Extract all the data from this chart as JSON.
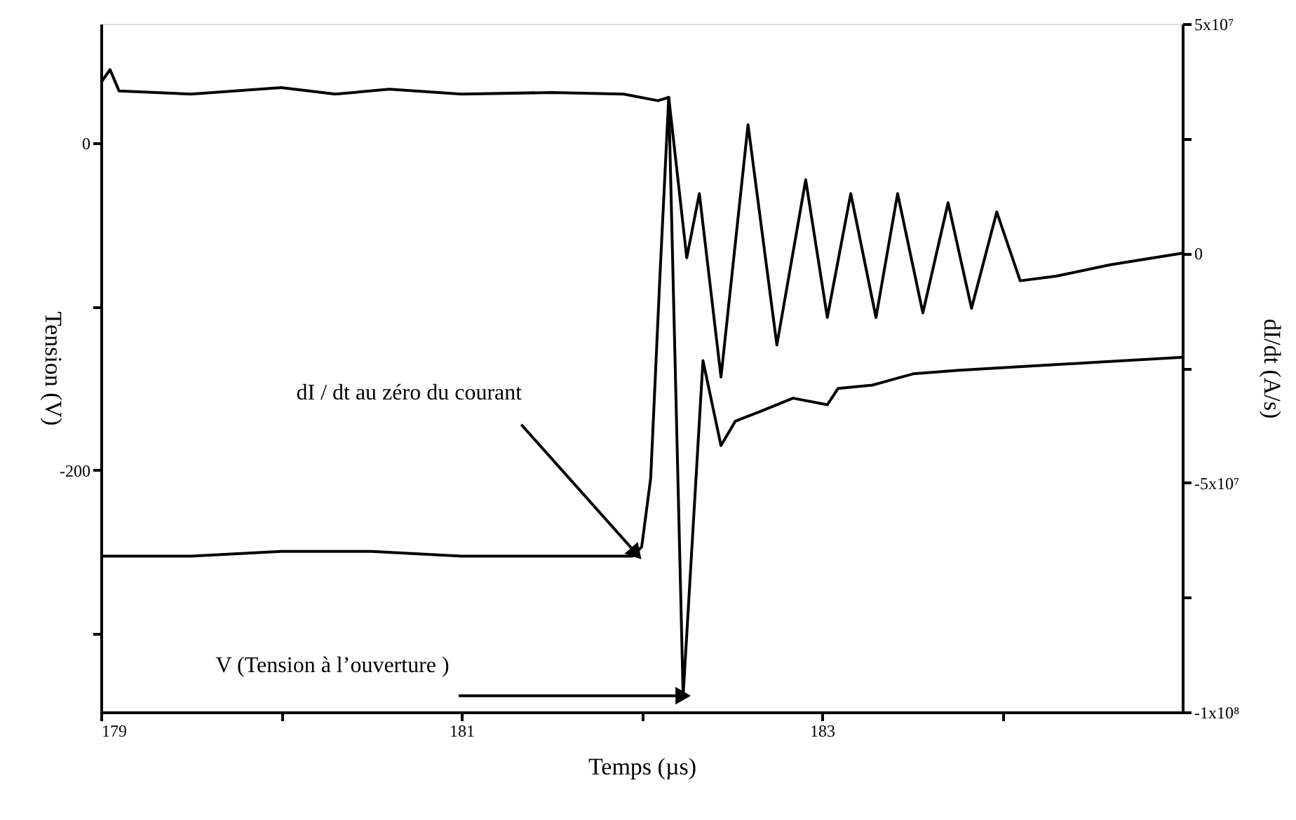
{
  "chart_data": {
    "type": "line",
    "xlabel": "Temps (µs)",
    "ylabel": "Tension (V)",
    "y2label": "dI/dt (A/s)",
    "xlim": [
      179,
      185
    ],
    "xticks": [
      179,
      {
        "value": 180,
        "label": null
      },
      181,
      {
        "value": 182,
        "label": null
      },
      183,
      {
        "value": 184,
        "label": null
      }
    ],
    "ylim": [
      -348,
      73
    ],
    "yticks": [
      {
        "value": -300,
        "label": null
      },
      -200,
      {
        "value": -100,
        "label": null
      },
      0
    ],
    "y2lim": [
      -100000000,
      50000000
    ],
    "y2ticks": [
      {
        "value": -100000000,
        "label": "-1x10⁸"
      },
      {
        "value": -75000000,
        "label": null
      },
      {
        "value": -50000000,
        "label": "-5x10⁷"
      },
      {
        "value": -25000000,
        "label": null
      },
      0,
      {
        "value": 25000000,
        "label": null
      },
      {
        "value": 50000000,
        "label": "5x10⁷"
      }
    ],
    "grid": false,
    "marker": "none",
    "line_style": "solid",
    "series": [
      {
        "color": "#000000",
        "x": [
          179.0,
          179.05,
          179.1,
          179.5,
          180.0,
          180.3,
          180.6,
          181.0,
          181.5,
          181.9,
          182.09,
          182.15,
          182.23,
          182.34,
          182.44,
          182.52,
          182.66,
          182.84,
          183.03,
          183.09,
          183.28,
          183.51,
          183.75,
          184.06,
          184.53,
          185.0
        ],
        "values": [
          37,
          45,
          32,
          30,
          34,
          30,
          33,
          30,
          31,
          30,
          26,
          28,
          -338,
          -133,
          -185,
          -170,
          -164,
          -156,
          -160,
          -150,
          -148,
          -141,
          -139,
          -137,
          -134,
          -131
        ]
      },
      {
        "color": "#000000",
        "axis": "y2",
        "x": [
          179.0,
          179.5,
          180.0,
          180.5,
          181.0,
          181.5,
          181.95,
          182.0,
          182.05,
          182.1,
          182.15,
          182.25,
          182.32,
          182.44,
          182.59,
          182.75,
          182.91,
          183.03,
          183.16,
          183.3,
          183.42,
          183.56,
          183.7,
          183.83,
          183.97,
          184.1,
          184.3,
          184.6,
          185.0
        ],
        "values": [
          -66000000,
          -66000000,
          -65000000,
          -65000000,
          -66000000,
          -66000000,
          -66000000,
          -64000000,
          -49000000,
          -6000000,
          34000000,
          -1000000,
          13000000,
          -27000000,
          28000000,
          -20000000,
          16000000,
          -14000000,
          13000000,
          -14000000,
          13000000,
          -13000000,
          11000000,
          -12000000,
          9000000,
          -6000000,
          -5000000,
          -2500000,
          0
        ]
      }
    ],
    "annotations": [
      {
        "text": "dI / dt au zéro du courant",
        "x": 181.97,
        "y": -251
      },
      {
        "text": "V (Tension à l’ouverture )",
        "x": 182.23,
        "y": -338
      }
    ]
  }
}
